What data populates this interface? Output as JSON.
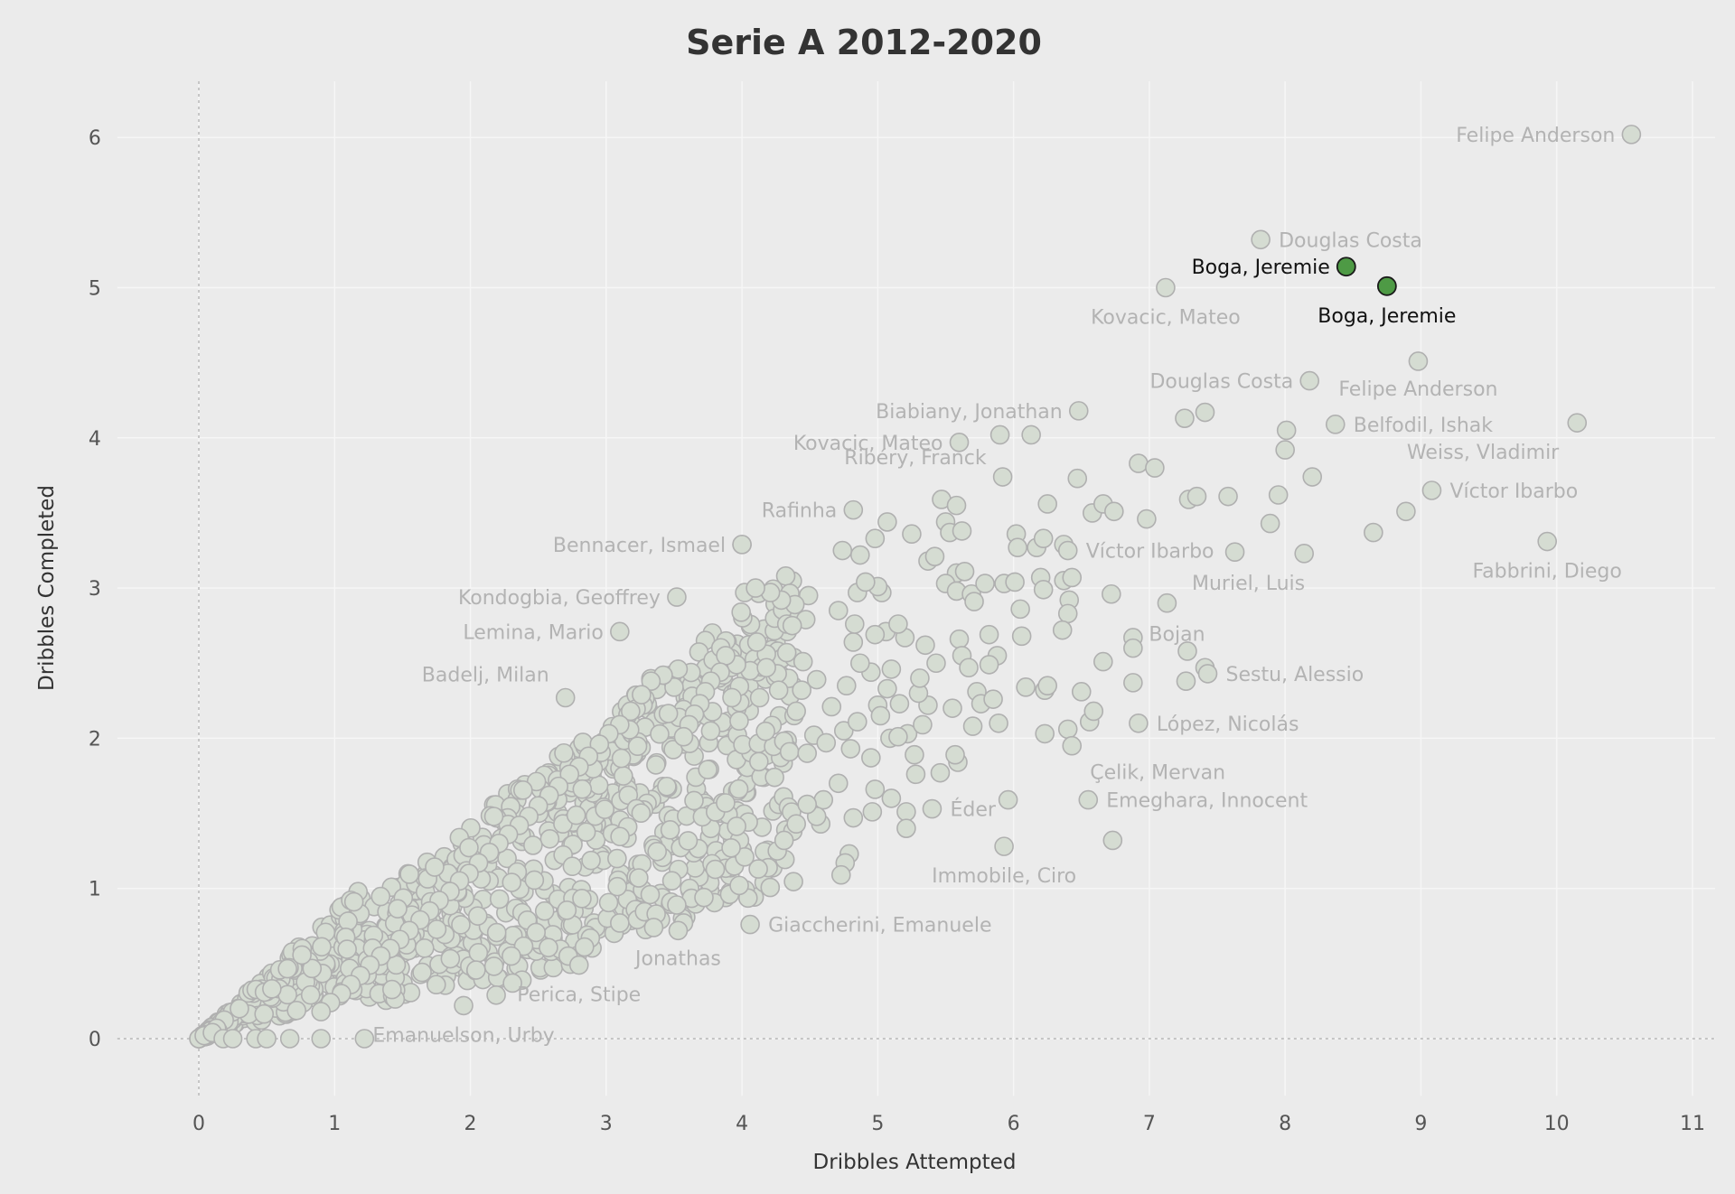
{
  "chart_data": {
    "type": "scatter",
    "title": "Serie A 2012-2020",
    "xlabel": "Dribbles Attempted",
    "ylabel": "Dribbles Completed",
    "xlim": [
      -0.6,
      11.2
    ],
    "ylim": [
      -0.38,
      6.4
    ],
    "xticks": [
      0,
      1,
      2,
      3,
      4,
      5,
      6,
      7,
      8,
      9,
      10,
      11
    ],
    "yticks": [
      0,
      1,
      2,
      3,
      4,
      5,
      6
    ],
    "grid": true,
    "reference_lines": {
      "x": 0,
      "y": 0
    },
    "colors": {
      "background": "#ebebeb",
      "grid": "#f6f6f6",
      "point_fill": "#d5dcd2",
      "point_edge": "#b0b0b0",
      "highlight_fill": "#4e9a45",
      "highlight_edge": "#1a1a1a",
      "label": "#b3b3b3",
      "highlight_label": "#111111"
    },
    "highlighted": [
      {
        "name": "Boga, Jeremie",
        "x": 8.45,
        "y": 5.14
      },
      {
        "name": "Boga, Jeremie",
        "x": 8.75,
        "y": 5.01
      }
    ],
    "labeled_points": [
      {
        "name": "Felipe Anderson",
        "x": 10.55,
        "y": 6.02
      },
      {
        "name": "Douglas Costa",
        "x": 7.82,
        "y": 5.32
      },
      {
        "name": "Kovacic, Mateo",
        "x": 7.12,
        "y": 5.0
      },
      {
        "name": "Douglas Costa",
        "x": 8.18,
        "y": 4.38
      },
      {
        "name": "Felipe Anderson",
        "x": 8.98,
        "y": 4.51
      },
      {
        "name": "Biabiany, Jonathan",
        "x": 6.48,
        "y": 4.18
      },
      {
        "name": "Belfodil, Ishak",
        "x": 8.37,
        "y": 4.09
      },
      {
        "name": "Weiss, Vladimir",
        "x": 10.15,
        "y": 4.1
      },
      {
        "name": "Kovacic, Mateo",
        "x": 5.6,
        "y": 3.97
      },
      {
        "name": "Ribéry, Franck",
        "x": 5.92,
        "y": 3.74
      },
      {
        "name": "Víctor Ibarbo",
        "x": 9.08,
        "y": 3.65
      },
      {
        "name": "Rafinha",
        "x": 4.82,
        "y": 3.52
      },
      {
        "name": "Bennacer, Ismael",
        "x": 4.0,
        "y": 3.29
      },
      {
        "name": "Víctor Ibarbo",
        "x": 6.4,
        "y": 3.25
      },
      {
        "name": "Fabbrini, Diego",
        "x": 9.93,
        "y": 3.31
      },
      {
        "name": "Muriel, Luis",
        "x": 7.63,
        "y": 3.24
      },
      {
        "name": "Kondogbia, Geoffrey",
        "x": 3.52,
        "y": 2.94
      },
      {
        "name": "Lemina, Mario",
        "x": 3.1,
        "y": 2.71
      },
      {
        "name": "Bojan",
        "x": 7.13,
        "y": 2.9
      },
      {
        "name": "Badelj, Milan",
        "x": 2.7,
        "y": 2.27
      },
      {
        "name": "Sestu, Alessio",
        "x": 7.43,
        "y": 2.43
      },
      {
        "name": "López, Nicolás",
        "x": 6.92,
        "y": 2.1
      },
      {
        "name": "Çelik, Mervan",
        "x": 6.43,
        "y": 1.95
      },
      {
        "name": "Éder",
        "x": 5.4,
        "y": 1.53
      },
      {
        "name": "Emeghara, Innocent",
        "x": 6.55,
        "y": 1.59
      },
      {
        "name": "Immobile, Ciro",
        "x": 5.93,
        "y": 1.28
      },
      {
        "name": "Giaccherini, Emanuele",
        "x": 4.06,
        "y": 0.76
      },
      {
        "name": "Jonathas",
        "x": 3.53,
        "y": 0.72
      },
      {
        "name": "Perica, Stipe",
        "x": 2.8,
        "y": 0.49
      },
      {
        "name": "Emanuelson, Urby",
        "x": 1.95,
        "y": 0.22
      }
    ],
    "other_points": [
      [
        0,
        0
      ],
      [
        0.04,
        0.02
      ],
      [
        0.1,
        0.04
      ],
      [
        0.18,
        0.0
      ],
      [
        0.25,
        0.0
      ],
      [
        0.42,
        0.0
      ],
      [
        0.5,
        0.0
      ],
      [
        0.67,
        0.0
      ],
      [
        0.9,
        0.0
      ],
      [
        1.22,
        0.0
      ],
      [
        7.26,
        4.13
      ],
      [
        7.41,
        4.17
      ],
      [
        5.9,
        4.02
      ],
      [
        6.13,
        4.02
      ],
      [
        6.47,
        3.73
      ],
      [
        6.92,
        3.83
      ],
      [
        7.04,
        3.8
      ],
      [
        8.01,
        4.05
      ],
      [
        8.0,
        3.92
      ],
      [
        8.2,
        3.74
      ],
      [
        7.29,
        3.59
      ],
      [
        7.35,
        3.61
      ],
      [
        7.58,
        3.61
      ],
      [
        7.95,
        3.62
      ],
      [
        7.89,
        3.43
      ],
      [
        6.98,
        3.46
      ],
      [
        6.58,
        3.5
      ],
      [
        6.66,
        3.56
      ],
      [
        6.74,
        3.51
      ],
      [
        8.14,
        3.23
      ],
      [
        8.65,
        3.37
      ],
      [
        8.89,
        3.51
      ],
      [
        6.25,
        3.56
      ],
      [
        6.02,
        3.36
      ],
      [
        6.03,
        3.27
      ],
      [
        6.17,
        3.27
      ],
      [
        6.22,
        3.33
      ],
      [
        6.37,
        3.29
      ],
      [
        5.93,
        3.03
      ],
      [
        6.01,
        3.04
      ],
      [
        6.2,
        3.07
      ],
      [
        6.22,
        2.99
      ],
      [
        6.37,
        3.05
      ],
      [
        6.43,
        3.07
      ],
      [
        6.72,
        2.96
      ],
      [
        6.41,
        2.92
      ],
      [
        6.4,
        2.83
      ],
      [
        6.36,
        2.72
      ],
      [
        6.05,
        2.86
      ],
      [
        6.06,
        2.68
      ],
      [
        6.88,
        2.67
      ],
      [
        6.88,
        2.6
      ],
      [
        7.28,
        2.58
      ],
      [
        7.41,
        2.47
      ],
      [
        7.27,
        2.38
      ],
      [
        6.88,
        2.37
      ],
      [
        6.66,
        2.51
      ],
      [
        6.5,
        2.31
      ],
      [
        6.56,
        2.11
      ],
      [
        6.59,
        2.18
      ],
      [
        6.4,
        2.06
      ],
      [
        6.23,
        2.03
      ],
      [
        6.09,
        2.34
      ],
      [
        6.23,
        2.32
      ],
      [
        6.25,
        2.35
      ],
      [
        6.73,
        1.32
      ],
      [
        5.96,
        1.59
      ],
      [
        5.59,
        1.84
      ],
      [
        5.57,
        1.89
      ],
      [
        5.46,
        1.77
      ],
      [
        5.28,
        1.76
      ],
      [
        5.22,
        2.03
      ],
      [
        5.27,
        1.89
      ],
      [
        5.21,
        1.51
      ],
      [
        5.21,
        1.4
      ],
      [
        4.96,
        1.51
      ],
      [
        5.1,
        1.6
      ],
      [
        4.98,
        1.66
      ],
      [
        4.95,
        1.87
      ],
      [
        4.8,
        1.93
      ],
      [
        4.82,
        1.47
      ],
      [
        4.79,
        1.23
      ],
      [
        4.76,
        1.17
      ],
      [
        4.73,
        1.09
      ],
      [
        4.6,
        1.59
      ],
      [
        4.58,
        1.43
      ],
      [
        4.71,
        1.7
      ],
      [
        4.75,
        2.05
      ],
      [
        4.85,
        2.11
      ],
      [
        4.77,
        2.35
      ],
      [
        4.82,
        2.64
      ],
      [
        4.83,
        2.76
      ],
      [
        4.71,
        2.85
      ],
      [
        4.85,
        2.97
      ],
      [
        4.74,
        3.25
      ],
      [
        4.87,
        3.22
      ],
      [
        4.98,
        3.33
      ],
      [
        5.07,
        3.44
      ],
      [
        5.25,
        3.36
      ],
      [
        5.37,
        3.18
      ],
      [
        5.47,
        3.59
      ],
      [
        5.58,
        3.55
      ],
      [
        5.5,
        3.44
      ],
      [
        5.53,
        3.37
      ],
      [
        5.62,
        3.38
      ],
      [
        5.42,
        3.21
      ],
      [
        5.58,
        3.1
      ],
      [
        5.64,
        3.11
      ],
      [
        5.5,
        3.03
      ],
      [
        5.58,
        2.98
      ],
      [
        5.69,
        2.96
      ],
      [
        5.71,
        2.91
      ],
      [
        5.79,
        3.03
      ],
      [
        5.6,
        2.66
      ],
      [
        5.62,
        2.55
      ],
      [
        5.67,
        2.47
      ],
      [
        5.82,
        2.69
      ],
      [
        5.88,
        2.55
      ],
      [
        5.82,
        2.49
      ],
      [
        5.73,
        2.31
      ],
      [
        5.76,
        2.23
      ],
      [
        5.85,
        2.26
      ],
      [
        5.89,
        2.1
      ],
      [
        5.7,
        2.08
      ],
      [
        5.55,
        2.2
      ],
      [
        5.37,
        2.22
      ],
      [
        5.3,
        2.3
      ],
      [
        5.43,
        2.5
      ],
      [
        5.35,
        2.62
      ],
      [
        5.2,
        2.67
      ],
      [
        5.06,
        2.71
      ],
      [
        4.98,
        2.69
      ],
      [
        5.03,
        2.97
      ],
      [
        5.0,
        3.01
      ],
      [
        4.91,
        3.04
      ],
      [
        5.15,
        2.76
      ],
      [
        5.1,
        2.46
      ],
      [
        4.95,
        2.44
      ],
      [
        4.87,
        2.5
      ],
      [
        5.07,
        2.33
      ],
      [
        5.16,
        2.23
      ],
      [
        5.0,
        2.22
      ],
      [
        5.02,
        2.15
      ],
      [
        5.09,
        2.0
      ],
      [
        5.15,
        2.01
      ],
      [
        5.31,
        2.4
      ],
      [
        5.33,
        2.09
      ],
      [
        4.49,
        2.95
      ],
      [
        4.47,
        2.79
      ],
      [
        4.39,
        2.89
      ],
      [
        4.33,
        2.76
      ],
      [
        4.45,
        2.51
      ],
      [
        4.33,
        2.57
      ],
      [
        4.26,
        2.43
      ],
      [
        4.18,
        2.56
      ],
      [
        4.11,
        2.64
      ],
      [
        4.06,
        2.45
      ],
      [
        4.02,
        2.97
      ],
      [
        4.0,
        3.29
      ],
      [
        3.96,
        2.49
      ],
      [
        3.88,
        2.55
      ],
      [
        3.84,
        2.44
      ],
      [
        3.77,
        2.38
      ],
      [
        3.73,
        2.31
      ],
      [
        3.69,
        2.23
      ],
      [
        3.65,
        2.16
      ],
      [
        3.61,
        2.09
      ],
      [
        3.57,
        2.01
      ],
      [
        3.53,
        2.46
      ],
      [
        3.5,
        2.34
      ],
      [
        3.42,
        2.42
      ],
      [
        3.33,
        2.38
      ],
      [
        3.26,
        2.29
      ],
      [
        3.18,
        2.18
      ],
      [
        3.1,
        2.09
      ],
      [
        3.02,
        2.03
      ],
      [
        2.95,
        1.96
      ],
      [
        2.87,
        1.88
      ],
      [
        2.8,
        1.81
      ],
      [
        2.73,
        1.76
      ],
      [
        2.65,
        1.68
      ],
      [
        2.58,
        1.62
      ],
      [
        2.5,
        1.55
      ],
      [
        2.43,
        1.48
      ],
      [
        2.36,
        1.42
      ],
      [
        2.28,
        1.36
      ],
      [
        2.21,
        1.3
      ],
      [
        2.14,
        1.24
      ],
      [
        2.06,
        1.17
      ],
      [
        1.99,
        1.1
      ],
      [
        1.92,
        1.05
      ],
      [
        1.85,
        0.98
      ],
      [
        1.77,
        0.92
      ],
      [
        1.7,
        0.85
      ],
      [
        1.63,
        0.79
      ],
      [
        1.55,
        0.72
      ],
      [
        1.48,
        0.66
      ],
      [
        1.41,
        0.6
      ],
      [
        1.34,
        0.55
      ],
      [
        1.26,
        0.49
      ],
      [
        1.19,
        0.42
      ],
      [
        1.12,
        0.36
      ],
      [
        1.05,
        0.3
      ],
      [
        0.97,
        0.24
      ],
      [
        0.9,
        0.18
      ],
      [
        2.38,
        0.39
      ],
      [
        2.31,
        0.37
      ],
      [
        2.19,
        0.29
      ],
      [
        2.72,
        0.55
      ],
      [
        2.84,
        0.61
      ],
      [
        3.1,
        0.77
      ],
      [
        3.35,
        0.74
      ],
      [
        3.57,
        0.77
      ],
      [
        3.52,
        0.89
      ],
      [
        3.72,
        0.94
      ],
      [
        3.98,
        1.02
      ],
      [
        4.12,
        1.13
      ],
      [
        4.26,
        1.25
      ],
      [
        4.31,
        1.32
      ],
      [
        4.02,
        1.21
      ],
      [
        3.92,
        1.27
      ],
      [
        4.4,
        1.43
      ],
      [
        4.55,
        1.48
      ],
      [
        4.48,
        1.56
      ],
      [
        4.24,
        1.74
      ],
      [
        4.35,
        1.91
      ],
      [
        4.48,
        1.9
      ],
      [
        4.53,
        2.02
      ],
      [
        4.62,
        1.97
      ],
      [
        4.66,
        2.21
      ],
      [
        4.4,
        2.18
      ],
      [
        4.27,
        2.32
      ],
      [
        4.13,
        2.27
      ],
      [
        4.37,
        2.75
      ],
      [
        4.29,
        2.92
      ],
      [
        4.21,
        2.97
      ],
      [
        4.1,
        3.0
      ],
      [
        4.18,
        2.47
      ],
      [
        4.44,
        2.32
      ],
      [
        4.55,
        2.39
      ]
    ]
  }
}
